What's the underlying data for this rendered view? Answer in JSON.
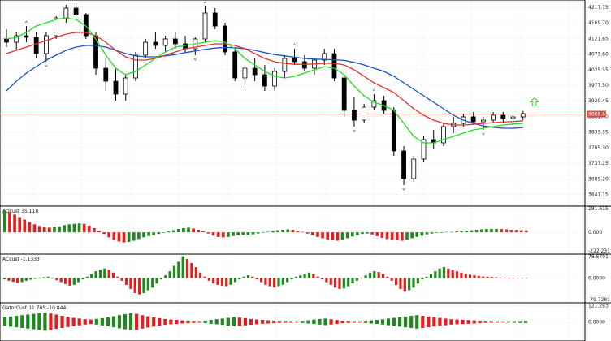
{
  "chart_data": [
    {
      "type": "candlestick",
      "name": "price",
      "ylim": [
        3615,
        4235
      ],
      "yticks": [
        "4217.75",
        "4169.70",
        "4121.65",
        "4073.60",
        "4025.55",
        "3977.50",
        "3929.45",
        "3881.40",
        "3833.35",
        "3785.30",
        "3737.25",
        "3689.20",
        "3641.15"
      ],
      "current_price": "3888.63",
      "colors": {
        "bull": "#ffffff",
        "bear": "#000000",
        "wick": "#000000",
        "grid": "#e6e6e6",
        "price_line": "#e06a6a",
        "price_tag": "#d9473f",
        "lime": "#22dd22",
        "red": "#e23030",
        "blue": "#1f4fc8",
        "arrow": "#2fcc2f"
      },
      "candles": [
        [
          4120,
          4150,
          4095,
          4110
        ],
        [
          4110,
          4140,
          4085,
          4130
        ],
        [
          4130,
          4160,
          4110,
          4125
        ],
        [
          4125,
          4140,
          4060,
          4075
        ],
        [
          4075,
          4140,
          4050,
          4130
        ],
        [
          4130,
          4190,
          4120,
          4185
        ],
        [
          4185,
          4225,
          4170,
          4215
        ],
        [
          4215,
          4230,
          4190,
          4195
        ],
        [
          4195,
          4200,
          4120,
          4130
        ],
        [
          4130,
          4140,
          4010,
          4030
        ],
        [
          4030,
          4060,
          3960,
          3990
        ],
        [
          3990,
          4030,
          3930,
          3950
        ],
        [
          3950,
          4010,
          3930,
          4000
        ],
        [
          4000,
          4080,
          3990,
          4070
        ],
        [
          4070,
          4120,
          4060,
          4110
        ],
        [
          4110,
          4140,
          4090,
          4100
        ],
        [
          4100,
          4130,
          4080,
          4120
        ],
        [
          4120,
          4140,
          4090,
          4105
        ],
        [
          4105,
          4130,
          4080,
          4090
        ],
        [
          4090,
          4125,
          4070,
          4120
        ],
        [
          4120,
          4220,
          4110,
          4200
        ],
        [
          4200,
          4215,
          4150,
          4160
        ],
        [
          4160,
          4170,
          4070,
          4080
        ],
        [
          4080,
          4090,
          3990,
          4000
        ],
        [
          4000,
          4040,
          3970,
          4030
        ],
        [
          4030,
          4060,
          3990,
          4010
        ],
        [
          4010,
          4040,
          3960,
          3975
        ],
        [
          3975,
          4030,
          3960,
          4020
        ],
        [
          4020,
          4070,
          4000,
          4060
        ],
        [
          4060,
          4090,
          4040,
          4050
        ],
        [
          4050,
          4070,
          4020,
          4030
        ],
        [
          4030,
          4060,
          4010,
          4055
        ],
        [
          4055,
          4090,
          4040,
          4075
        ],
        [
          4075,
          4090,
          3990,
          4000
        ],
        [
          4000,
          4010,
          3880,
          3900
        ],
        [
          3900,
          3940,
          3850,
          3870
        ],
        [
          3870,
          3920,
          3860,
          3910
        ],
        [
          3910,
          3950,
          3900,
          3930
        ],
        [
          3930,
          3945,
          3890,
          3900
        ],
        [
          3900,
          3910,
          3760,
          3775
        ],
        [
          3775,
          3790,
          3670,
          3690
        ],
        [
          3690,
          3760,
          3680,
          3750
        ],
        [
          3750,
          3820,
          3740,
          3810
        ],
        [
          3810,
          3840,
          3780,
          3800
        ],
        [
          3800,
          3860,
          3790,
          3850
        ],
        [
          3850,
          3880,
          3830,
          3860
        ],
        [
          3860,
          3890,
          3850,
          3880
        ],
        [
          3880,
          3895,
          3855,
          3865
        ],
        [
          3865,
          3880,
          3840,
          3870
        ],
        [
          3870,
          3895,
          3860,
          3885
        ],
        [
          3885,
          3895,
          3860,
          3875
        ],
        [
          3875,
          3885,
          3855,
          3880
        ],
        [
          3880,
          3898,
          3870,
          3890
        ]
      ],
      "lines": {
        "lime": [
          4120,
          4125,
          4140,
          4160,
          4170,
          4180,
          4185,
          4180,
          4160,
          4120,
          4070,
          4030,
          4010,
          4020,
          4040,
          4060,
          4080,
          4095,
          4100,
          4105,
          4110,
          4115,
          4110,
          4090,
          4060,
          4040,
          4020,
          4005,
          4000,
          4005,
          4015,
          4025,
          4035,
          4030,
          4010,
          3975,
          3945,
          3925,
          3915,
          3900,
          3860,
          3820,
          3800,
          3800,
          3810,
          3820,
          3830,
          3840,
          3845,
          3850,
          3855,
          3858,
          3860
        ],
        "red": [
          4075,
          4085,
          4095,
          4105,
          4115,
          4125,
          4135,
          4140,
          4140,
          4130,
          4110,
          4085,
          4065,
          4055,
          4055,
          4060,
          4070,
          4080,
          4090,
          4095,
          4100,
          4105,
          4105,
          4100,
          4090,
          4075,
          4060,
          4050,
          4045,
          4042,
          4042,
          4043,
          4045,
          4045,
          4040,
          4025,
          4005,
          3985,
          3970,
          3955,
          3930,
          3905,
          3885,
          3870,
          3860,
          3855,
          3855,
          3857,
          3860,
          3862,
          3864,
          3866,
          3868
        ],
        "blue": [
          3960,
          3990,
          4015,
          4035,
          4055,
          4070,
          4085,
          4095,
          4100,
          4100,
          4095,
          4085,
          4075,
          4068,
          4065,
          4065,
          4068,
          4072,
          4078,
          4083,
          4088,
          4092,
          4094,
          4093,
          4090,
          4085,
          4078,
          4072,
          4068,
          4064,
          4060,
          4058,
          4057,
          4056,
          4054,
          4048,
          4040,
          4030,
          4020,
          4005,
          3985,
          3965,
          3945,
          3925,
          3905,
          3885,
          3870,
          3860,
          3852,
          3848,
          3845,
          3845,
          3847
        ]
      }
    },
    {
      "type": "bar",
      "name": "aoscl",
      "title": "AOcust 35.118",
      "ylim": [
        -230,
        290
      ],
      "yticks": [
        "281.615",
        "0.000",
        "-222.231"
      ],
      "colors": {
        "up": "#1e8a1e",
        "down": "#e02020"
      },
      "values": [
        260,
        240,
        210,
        180,
        150,
        120,
        95,
        75,
        60,
        55,
        60,
        70,
        85,
        95,
        100,
        105,
        100,
        80,
        50,
        20,
        -20,
        -60,
        -90,
        -110,
        -120,
        -115,
        -100,
        -80,
        -60,
        -45,
        -35,
        -20,
        -5,
        10,
        25,
        40,
        50,
        55,
        45,
        30,
        10,
        -15,
        -40,
        -55,
        -60,
        -55,
        -45,
        -35,
        -30,
        -30,
        -25,
        -15,
        -5,
        5,
        15,
        25,
        30,
        35,
        30,
        20,
        5,
        -15,
        -35,
        -55,
        -70,
        -85,
        -95,
        -100,
        -90,
        -70,
        -50,
        -35,
        -20,
        -15,
        -25,
        -45,
        -65,
        -80,
        -90,
        -95,
        -100,
        -85,
        -70,
        -55,
        -40,
        -25,
        -15,
        -5,
        0,
        5,
        5,
        10,
        15,
        20,
        25,
        30,
        35,
        38,
        40,
        40,
        38,
        35,
        30,
        28,
        26,
        24
      ]
    },
    {
      "type": "bar",
      "name": "acoscl",
      "title": "ACcust -1.1333",
      "ylim": [
        -82,
        82
      ],
      "yticks": [
        "78.6791",
        "0.0000",
        "-79.7281"
      ],
      "colors": {
        "up": "#1e8a1e",
        "down": "#e02020"
      },
      "values": [
        -5,
        -10,
        -14,
        -18,
        -15,
        -10,
        -6,
        -3,
        0,
        3,
        5,
        -2,
        -8,
        -15,
        -22,
        -28,
        -25,
        -15,
        -5,
        5,
        15,
        25,
        30,
        35,
        30,
        20,
        5,
        -10,
        -25,
        -40,
        -55,
        -60,
        -55,
        -45,
        -35,
        -20,
        -5,
        10,
        25,
        45,
        60,
        80,
        70,
        55,
        40,
        20,
        5,
        -10,
        -20,
        -25,
        -28,
        -30,
        -25,
        -15,
        -5,
        5,
        10,
        5,
        -5,
        -15,
        -25,
        -30,
        -35,
        -30,
        -25,
        -15,
        -5,
        5,
        10,
        15,
        20,
        15,
        5,
        -5,
        -15,
        -25,
        -35,
        -40,
        -38,
        -30,
        -20,
        -10,
        0,
        10,
        20,
        25,
        22,
        15,
        5,
        -10,
        -25,
        -40,
        -50,
        -45,
        -35,
        -20,
        -5,
        5,
        15,
        25,
        35,
        40,
        35,
        30,
        25,
        20,
        15,
        12,
        10,
        8,
        6,
        5,
        4,
        3,
        2,
        1,
        0,
        -1,
        -1,
        -1,
        -1
      ]
    },
    {
      "type": "bar",
      "name": "gatorscl",
      "title": "GatorCust 11.705 -10.844",
      "ylim": [
        -130,
        130
      ],
      "yticks": [
        "121.283",
        "0.0000"
      ],
      "colors": {
        "up": "#1e8a1e",
        "down": "#e02020"
      },
      "upper": [
        35,
        40,
        45,
        50,
        55,
        60,
        65,
        70,
        62,
        55,
        45,
        38,
        30,
        25,
        20,
        18,
        22,
        28,
        35,
        42,
        50,
        58,
        65,
        60,
        50,
        42,
        35,
        28,
        22,
        18,
        15,
        12,
        10,
        8,
        6,
        10,
        15,
        20,
        25,
        30,
        35,
        32,
        28,
        22,
        18,
        15,
        12,
        10,
        8,
        7,
        6,
        5,
        8,
        12,
        18,
        22,
        25,
        20,
        15,
        10,
        8,
        6,
        5,
        8,
        12,
        15,
        20,
        25,
        30,
        35,
        40,
        45,
        50,
        45,
        40,
        35,
        30,
        25,
        20,
        18,
        16,
        14,
        12,
        10,
        8,
        6,
        5,
        4,
        5,
        6,
        7,
        8
      ],
      "lower": [
        -30,
        -35,
        -40,
        -45,
        -50,
        -55,
        -60,
        -65,
        -60,
        -52,
        -45,
        -38,
        -32,
        -26,
        -20,
        -16,
        -20,
        -26,
        -32,
        -40,
        -48,
        -55,
        -62,
        -58,
        -50,
        -42,
        -35,
        -28,
        -22,
        -18,
        -15,
        -12,
        -10,
        -8,
        -6,
        -9,
        -14,
        -18,
        -22,
        -28,
        -32,
        -30,
        -26,
        -22,
        -18,
        -14,
        -12,
        -10,
        -8,
        -7,
        -6,
        -5,
        -8,
        -12,
        -16,
        -20,
        -24,
        -20,
        -15,
        -10,
        -8,
        -6,
        -5,
        -8,
        -12,
        -15,
        -20,
        -25,
        -30,
        -35,
        -40,
        -45,
        -50,
        -45,
        -40,
        -35,
        -30,
        -25,
        -20,
        -18,
        -16,
        -14,
        -12,
        -10,
        -8,
        -6,
        -5,
        -4,
        -5,
        -6,
        -7,
        -8
      ]
    }
  ]
}
